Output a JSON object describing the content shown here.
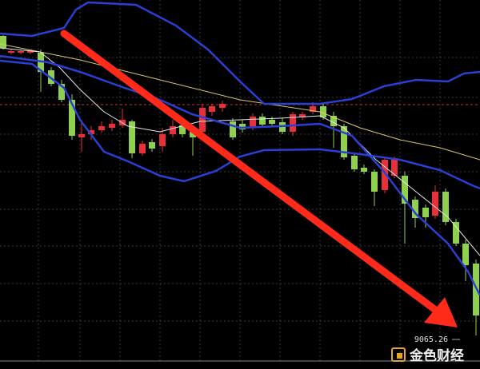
{
  "price_label": "9065.26",
  "watermark": "金色财经"
}
